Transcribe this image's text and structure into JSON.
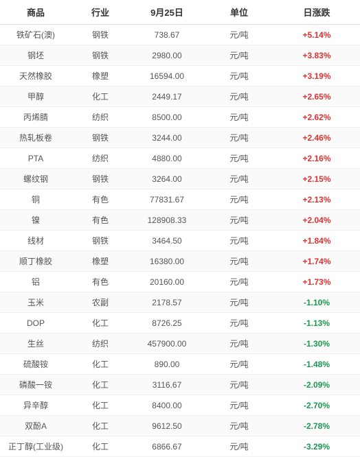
{
  "table": {
    "columns": [
      "商品",
      "行业",
      "9月25日",
      "单位",
      "日涨跌"
    ],
    "rows": [
      {
        "commodity": "铁矿石(澳)",
        "industry": "钢铁",
        "price": "738.67",
        "unit": "元/吨",
        "change": "+5.14%",
        "dir": "up"
      },
      {
        "commodity": "钢坯",
        "industry": "钢铁",
        "price": "2980.00",
        "unit": "元/吨",
        "change": "+3.83%",
        "dir": "up"
      },
      {
        "commodity": "天然橡胶",
        "industry": "橡塑",
        "price": "16594.00",
        "unit": "元/吨",
        "change": "+3.19%",
        "dir": "up"
      },
      {
        "commodity": "甲醇",
        "industry": "化工",
        "price": "2449.17",
        "unit": "元/吨",
        "change": "+2.65%",
        "dir": "up"
      },
      {
        "commodity": "丙烯腈",
        "industry": "纺织",
        "price": "8500.00",
        "unit": "元/吨",
        "change": "+2.62%",
        "dir": "up"
      },
      {
        "commodity": "热轧板卷",
        "industry": "钢铁",
        "price": "3244.00",
        "unit": "元/吨",
        "change": "+2.46%",
        "dir": "up"
      },
      {
        "commodity": "PTA",
        "industry": "纺织",
        "price": "4880.00",
        "unit": "元/吨",
        "change": "+2.16%",
        "dir": "up"
      },
      {
        "commodity": "螺纹钢",
        "industry": "钢铁",
        "price": "3264.00",
        "unit": "元/吨",
        "change": "+2.15%",
        "dir": "up"
      },
      {
        "commodity": "铜",
        "industry": "有色",
        "price": "77831.67",
        "unit": "元/吨",
        "change": "+2.13%",
        "dir": "up"
      },
      {
        "commodity": "镍",
        "industry": "有色",
        "price": "128908.33",
        "unit": "元/吨",
        "change": "+2.04%",
        "dir": "up"
      },
      {
        "commodity": "线材",
        "industry": "钢铁",
        "price": "3464.50",
        "unit": "元/吨",
        "change": "+1.84%",
        "dir": "up"
      },
      {
        "commodity": "顺丁橡胶",
        "industry": "橡塑",
        "price": "16380.00",
        "unit": "元/吨",
        "change": "+1.74%",
        "dir": "up"
      },
      {
        "commodity": "铝",
        "industry": "有色",
        "price": "20160.00",
        "unit": "元/吨",
        "change": "+1.73%",
        "dir": "up"
      },
      {
        "commodity": "玉米",
        "industry": "农副",
        "price": "2178.57",
        "unit": "元/吨",
        "change": "-1.10%",
        "dir": "down"
      },
      {
        "commodity": "DOP",
        "industry": "化工",
        "price": "8726.25",
        "unit": "元/吨",
        "change": "-1.13%",
        "dir": "down"
      },
      {
        "commodity": "生丝",
        "industry": "纺织",
        "price": "457900.00",
        "unit": "元/吨",
        "change": "-1.30%",
        "dir": "down"
      },
      {
        "commodity": "硫酸铵",
        "industry": "化工",
        "price": "890.00",
        "unit": "元/吨",
        "change": "-1.48%",
        "dir": "down"
      },
      {
        "commodity": "磷酸一铵",
        "industry": "化工",
        "price": "3116.67",
        "unit": "元/吨",
        "change": "-2.09%",
        "dir": "down"
      },
      {
        "commodity": "异辛醇",
        "industry": "化工",
        "price": "8400.00",
        "unit": "元/吨",
        "change": "-2.70%",
        "dir": "down"
      },
      {
        "commodity": "双酚A",
        "industry": "化工",
        "price": "9612.50",
        "unit": "元/吨",
        "change": "-2.78%",
        "dir": "down"
      },
      {
        "commodity": "正丁醇(工业级)",
        "industry": "化工",
        "price": "6866.67",
        "unit": "元/吨",
        "change": "-3.29%",
        "dir": "down"
      }
    ]
  }
}
